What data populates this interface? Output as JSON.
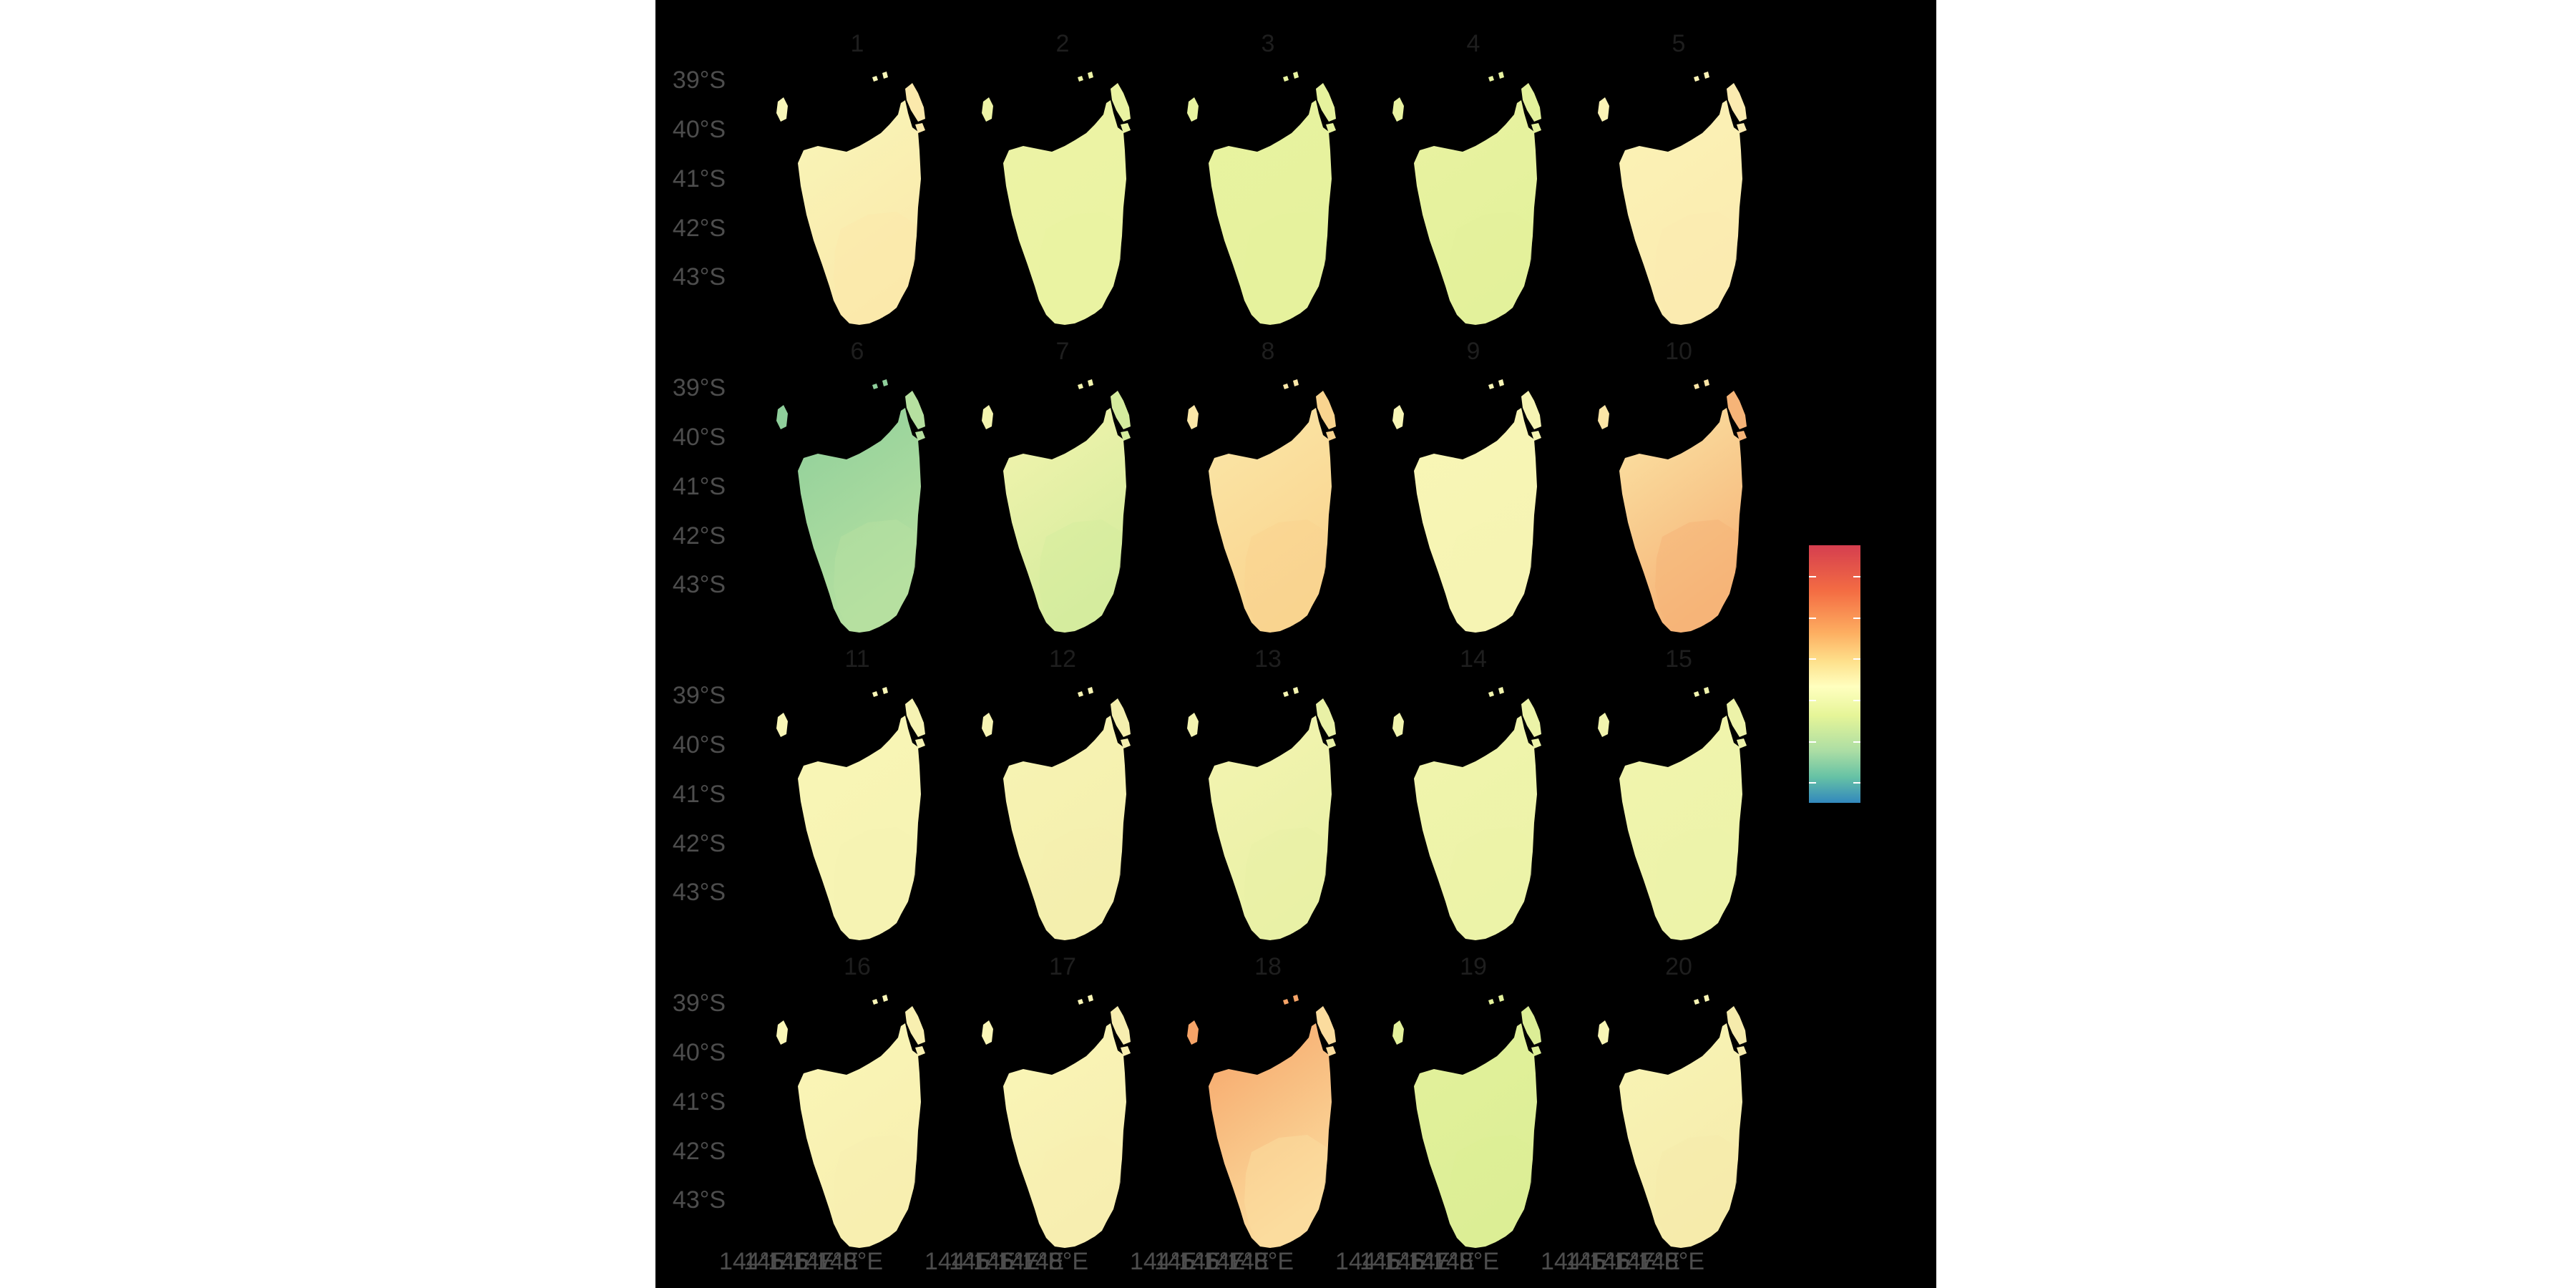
{
  "facets": [
    {
      "label": "1",
      "fill": "#f8f6b8",
      "fill2": "#fbe9ac"
    },
    {
      "label": "2",
      "fill": "#edf3a6",
      "fill2": "#eaf3a2"
    },
    {
      "label": "3",
      "fill": "#e8f3a0",
      "fill2": "#e6f29d"
    },
    {
      "label": "4",
      "fill": "#e9f3a1",
      "fill2": "#e3f19b"
    },
    {
      "label": "5",
      "fill": "#fbf3b6",
      "fill2": "#fbebb0"
    },
    {
      "label": "6",
      "fill": "#8fcf9b",
      "fill2": "#b6e0a0"
    },
    {
      "label": "7",
      "fill": "#f3f4ae",
      "fill2": "#d5ec9e"
    },
    {
      "label": "8",
      "fill": "#fbe7a8",
      "fill2": "#f9d48f"
    },
    {
      "label": "9",
      "fill": "#f8f6b6",
      "fill2": "#f6f4b3"
    },
    {
      "label": "10",
      "fill": "#fbe5a6",
      "fill2": "#f6b478"
    },
    {
      "label": "11",
      "fill": "#f9f6b6",
      "fill2": "#f6f3b3"
    },
    {
      "label": "12",
      "fill": "#f7f4b3",
      "fill2": "#f4efae"
    },
    {
      "label": "13",
      "fill": "#f4f4b1",
      "fill2": "#e9f1a6"
    },
    {
      "label": "14",
      "fill": "#f1f4ad",
      "fill2": "#ecf3a8"
    },
    {
      "label": "15",
      "fill": "#f1f4ae",
      "fill2": "#edf3a9"
    },
    {
      "label": "16",
      "fill": "#faf6b7",
      "fill2": "#f8efb0"
    },
    {
      "label": "17",
      "fill": "#faf6b7",
      "fill2": "#f7eeb0"
    },
    {
      "label": "18",
      "fill": "#f6a468",
      "fill2": "#fbdc9e"
    },
    {
      "label": "19",
      "fill": "#e3f19b",
      "fill2": "#dcee96"
    },
    {
      "label": "20",
      "fill": "#f8f5b5",
      "fill2": "#f6ebac"
    }
  ],
  "lat_labels": [
    "39°S",
    "40°S",
    "41°S",
    "42°S",
    "43°S"
  ],
  "lon_labels": [
    "144°E",
    "145°E",
    "146°E",
    "147°E",
    "148°E"
  ],
  "colorbar": {
    "palette": [
      "#d53e4f",
      "#f46d43",
      "#fdae61",
      "#fee08b",
      "#ffffbf",
      "#e6f598",
      "#abdda4",
      "#66c2a5",
      "#3288bd"
    ]
  }
}
